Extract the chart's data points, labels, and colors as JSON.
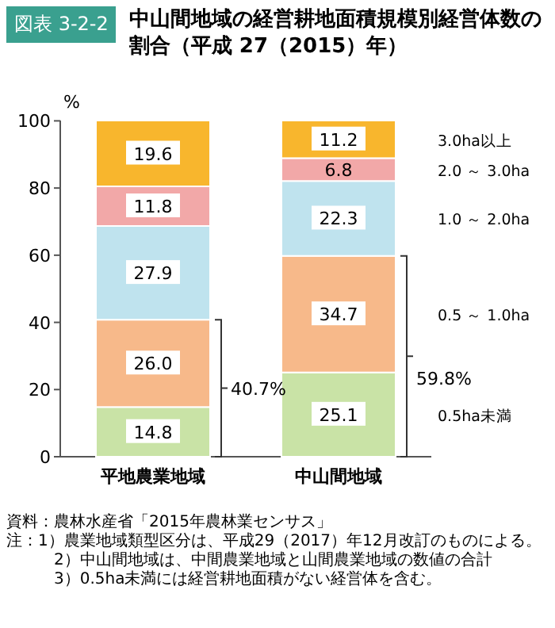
{
  "chart_data": {
    "type": "bar",
    "stacked": true,
    "title": "中山間地域の経営耕地面積規模別経営体数の割合（平成 27（2015）年）",
    "subtitle": "図表 3-2-2",
    "ylabel": "%",
    "categories": [
      "平地農業地域",
      "中山間地域"
    ],
    "series": [
      {
        "name": "0.5ha未満",
        "color": "#c9e3a6",
        "values": [
          14.8,
          25.1
        ]
      },
      {
        "name": "0.5 ～ 1.0ha",
        "color": "#f7b98a",
        "values": [
          26.0,
          34.7
        ],
        "value_labels": [
          "26.0",
          "34.7"
        ]
      },
      {
        "name": "1.0 ～ 2.0ha",
        "color": "#bfe3ee",
        "values": [
          27.9,
          22.3
        ]
      },
      {
        "name": "2.0 ～ 3.0ha",
        "color": "#f2a8a8",
        "values": [
          11.8,
          6.8
        ]
      },
      {
        "name": "3.0ha以上",
        "color": "#f8b62d",
        "values": [
          19.6,
          11.2
        ]
      }
    ],
    "data_labels": true,
    "legend": "right",
    "ylim": [
      0,
      100.1
    ],
    "yticks": [
      0,
      20,
      40,
      60,
      80,
      100
    ],
    "annotations": [
      "40.7%",
      "59.8%",
      "資料：農林水産省「2015年農林業センサス」",
      "注：1）農業地域類型区分は、平成29（2017）年12月改訂のものによる。",
      "2）中山間地域は、中間農業地域と山間農業地域の数値の合計",
      "3）0.5ha未満には経営耕地面積がない経営体を含む。"
    ]
  }
}
